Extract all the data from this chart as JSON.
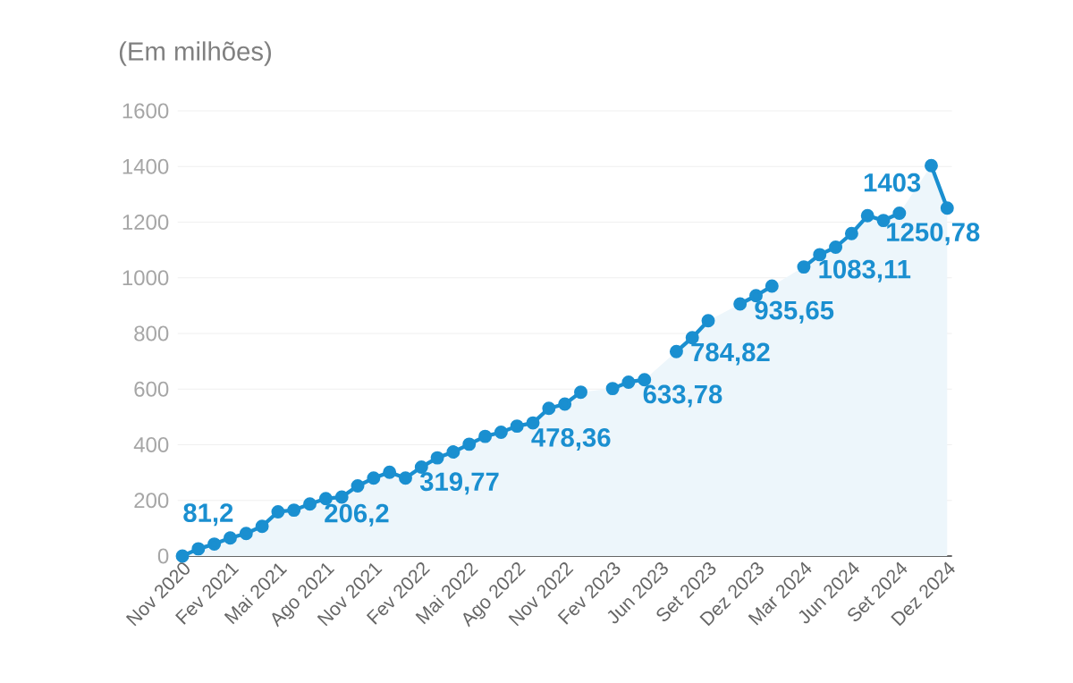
{
  "chart_data": {
    "type": "area",
    "ylabel": "(Em milhões)",
    "categories": [
      "Nov 2020",
      null,
      null,
      "Fev 2021",
      null,
      null,
      "Mai 2021",
      null,
      null,
      "Ago 2021",
      null,
      null,
      "Nov 2021",
      null,
      null,
      "Fev 2022",
      null,
      null,
      "Mai 2022",
      null,
      null,
      "Ago 2022",
      null,
      null,
      "Nov 2022",
      null,
      null,
      "Fev 2023",
      null,
      null,
      "Jun 2023",
      null,
      null,
      "Set 2023",
      null,
      null,
      "Dez 2023",
      null,
      null,
      "Mar 2024",
      null,
      null,
      "Jun 2024",
      null,
      null,
      "Set 2024",
      null,
      null,
      "Dez 2024"
    ],
    "series": [
      {
        "color": "#1a8fd0",
        "values": [
          0,
          26,
          43,
          65,
          81.2,
          107,
          159,
          165,
          187,
          206.2,
          212,
          252,
          280,
          301,
          280,
          319.77,
          353,
          374,
          402,
          430,
          445,
          467,
          478.36,
          531,
          546,
          589,
          null,
          602,
          625,
          633.78,
          null,
          735,
          784.82,
          846,
          null,
          906,
          935.65,
          970,
          null,
          1039,
          1083.11,
          1110,
          1159,
          1223,
          1206,
          1232,
          null,
          1403,
          1250.78
        ],
        "value_labels": [
          null,
          null,
          null,
          null,
          "81,2",
          null,
          null,
          null,
          null,
          "206,2",
          null,
          null,
          null,
          null,
          null,
          "319,77",
          null,
          null,
          null,
          null,
          null,
          null,
          "478,36",
          null,
          null,
          null,
          null,
          null,
          null,
          "633,78",
          null,
          null,
          "784,82",
          null,
          null,
          null,
          "935,65",
          null,
          null,
          null,
          "1083,11",
          null,
          null,
          null,
          null,
          null,
          null,
          "1403",
          "1250,78"
        ]
      }
    ],
    "ylim": [
      0,
      1600
    ],
    "yticks": [
      0,
      200,
      400,
      600,
      800,
      1000,
      1200,
      1400,
      1600
    ],
    "grid": "y",
    "marker": "circle",
    "line_style": "solid"
  }
}
